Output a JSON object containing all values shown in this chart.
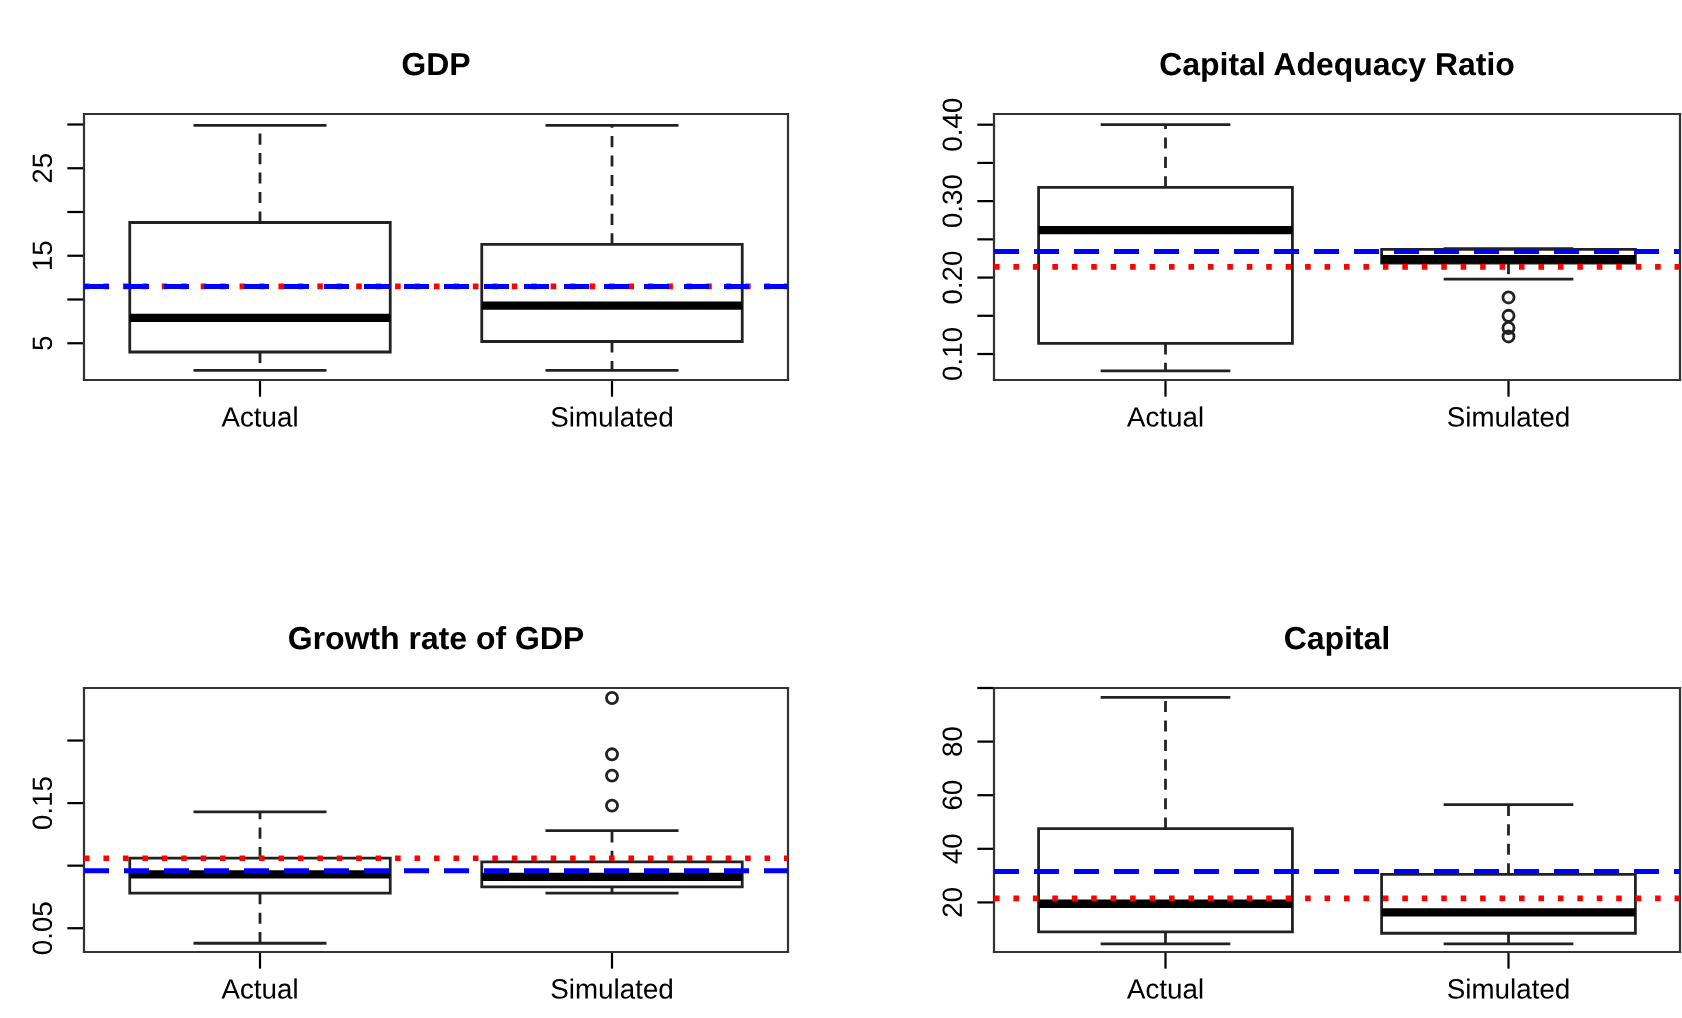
{
  "chart_data": [
    {
      "type": "box",
      "title": "GDP",
      "categories": [
        "Actual",
        "Simulated"
      ],
      "boxes": [
        {
          "low": 1.9,
          "q1": 4.0,
          "median": 7.9,
          "q3": 18.8,
          "high": 29.9
        },
        {
          "low": 1.9,
          "q1": 5.2,
          "median": 9.3,
          "q3": 16.3,
          "high": 29.9
        }
      ],
      "ylim": [
        0.8,
        31.2
      ],
      "yticks": [
        5,
        {
          "value": 10,
          "label": null
        },
        15,
        {
          "value": 20,
          "label": null
        },
        25,
        {
          "value": 30,
          "label": null
        }
      ],
      "ref_lines": [
        {
          "axis": "y",
          "value": 11.5,
          "color": "#ff0000",
          "line_style": "dotted"
        },
        {
          "axis": "y",
          "value": 11.5,
          "color": "#0000ff",
          "line_style": "dashed"
        }
      ],
      "grid": false
    },
    {
      "type": "box",
      "title": "Capital Adequacy Ratio",
      "categories": [
        "Actual",
        "Simulated"
      ],
      "boxes": [
        {
          "low": 0.078,
          "q1": 0.114,
          "median": 0.262,
          "q3": 0.318,
          "high": 0.4
        },
        {
          "low": 0.198,
          "q1": 0.219,
          "median": 0.224,
          "q3": 0.237,
          "high": 0.238,
          "outliers": [
            0.174,
            0.15,
            0.134,
            0.123
          ]
        }
      ],
      "ylim": [
        0.066,
        0.414
      ],
      "yticks": [
        {
          "value": 0.1,
          "label": "0.10"
        },
        {
          "value": 0.15,
          "label": null
        },
        {
          "value": 0.2,
          "label": "0.20"
        },
        {
          "value": 0.25,
          "label": null
        },
        {
          "value": 0.3,
          "label": "0.30"
        },
        {
          "value": 0.35,
          "label": null
        },
        {
          "value": 0.4,
          "label": "0.40"
        }
      ],
      "ref_lines": [
        {
          "axis": "y",
          "value": 0.214,
          "color": "#ff0000",
          "line_style": "dotted"
        },
        {
          "axis": "y",
          "value": 0.234,
          "color": "#0000ff",
          "line_style": "dashed"
        }
      ],
      "grid": false
    },
    {
      "type": "box",
      "title": "Growth rate of GDP",
      "categories": [
        "Actual",
        "Simulated"
      ],
      "boxes": [
        {
          "low": 0.038,
          "q1": 0.078,
          "median": 0.093,
          "q3": 0.106,
          "high": 0.143
        },
        {
          "low": 0.078,
          "q1": 0.083,
          "median": 0.091,
          "q3": 0.103,
          "high": 0.128,
          "outliers": [
            0.148,
            0.172,
            0.189,
            0.234
          ]
        }
      ],
      "ylim": [
        0.031,
        0.242
      ],
      "yticks": [
        {
          "value": 0.05,
          "label": "0.05"
        },
        {
          "value": 0.1,
          "label": null
        },
        {
          "value": 0.15,
          "label": "0.15"
        },
        {
          "value": 0.2,
          "label": null
        }
      ],
      "ref_lines": [
        {
          "axis": "y",
          "value": 0.106,
          "color": "#ff0000",
          "line_style": "dotted"
        },
        {
          "axis": "y",
          "value": 0.096,
          "color": "#0000ff",
          "line_style": "dashed"
        }
      ],
      "grid": false
    },
    {
      "type": "box",
      "title": "Capital",
      "categories": [
        "Actual",
        "Simulated"
      ],
      "boxes": [
        {
          "low": 4.5,
          "q1": 9,
          "median": 19.5,
          "q3": 47.5,
          "high": 96.5
        },
        {
          "low": 4.5,
          "q1": 8.5,
          "median": 16.3,
          "q3": 30.5,
          "high": 56.5
        }
      ],
      "ylim": [
        1.5,
        100
      ],
      "yticks": [
        20,
        40,
        60,
        80,
        {
          "value": 100,
          "label": null
        }
      ],
      "ref_lines": [
        {
          "axis": "y",
          "value": 21.5,
          "color": "#ff0000",
          "line_style": "dotted"
        },
        {
          "axis": "y",
          "value": 31.5,
          "color": "#0000ff",
          "line_style": "dashed"
        }
      ],
      "grid": false
    }
  ]
}
